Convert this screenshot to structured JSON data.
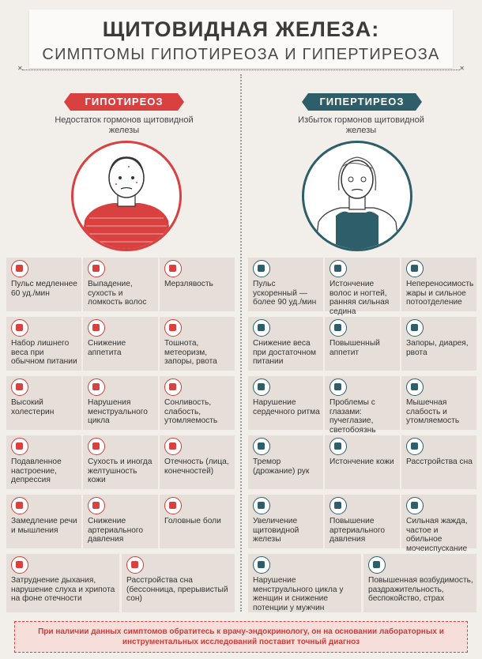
{
  "header": {
    "title": "ЩИТОВИДНАЯ ЖЕЛЕЗА:",
    "subtitle": "СИМПТОМЫ ГИПОТИРЕОЗА И ГИПЕРТИРЕОЗА"
  },
  "hypo": {
    "label": "ГИПОТИРЕОЗ",
    "desc": "Недостаток гормонов щитовидной железы",
    "color": "#d94141",
    "symptoms": [
      "Пульс медленнее 60 уд./мин",
      "Выпадение, сухость и ломкость волос",
      "Мерзлявость",
      "Набор лишнего веса при обычном питании",
      "Снижение аппетита",
      "Тошнота, метеоризм, запоры, рвота",
      "Высокий холестерин",
      "Нарушения менструального цикла",
      "Сонливость, слабость, утомляемость",
      "Подавленное настроение, депрессия",
      "Сухость и иногда желтушность кожи",
      "Отечность (лица, конечностей)",
      "Замедление речи и мышления",
      "Снижение артериального давления",
      "Головные боли",
      "Затруднение дыхания, нарушение слуха и хрипота на фоне отечности",
      "Расстройства сна (бессонница, прерывистый сон)"
    ]
  },
  "hyper": {
    "label": "ГИПЕРТИРЕОЗ",
    "desc": "Избыток гормонов щитовидной железы",
    "color": "#2d5e6a",
    "symptoms": [
      "Пульс ускоренный — более 90 уд./мин",
      "Истончение волос и ногтей, ранняя сильная седина",
      "Непереносимость жары и сильное потоотделение",
      "Снижение веса при достаточном питании",
      "Повышенный аппетит",
      "Запоры, диарея, рвота",
      "Нарушение сердечного ритма",
      "Проблемы с глазами: пучеглазие, светобоязнь",
      "Мышечная слабость и утомляемость",
      "Тремор (дрожание) рук",
      "Истончение кожи",
      "Расстройства сна",
      "Увеличение щитовидной железы",
      "Повышение артериального давления",
      "Сильная жажда, частое и обильное мочеиспускание",
      "Нарушение менструального цикла у женщин и снижение потенции у мужчин",
      "Повышенная возбудимость, раздражительность, беспокойство, страх"
    ]
  },
  "footer": "При наличии данных симптомов обратитесь к врачу-эндокринологу, он на основании лабораторных и инструментальных исследований поставит точный диагноз"
}
